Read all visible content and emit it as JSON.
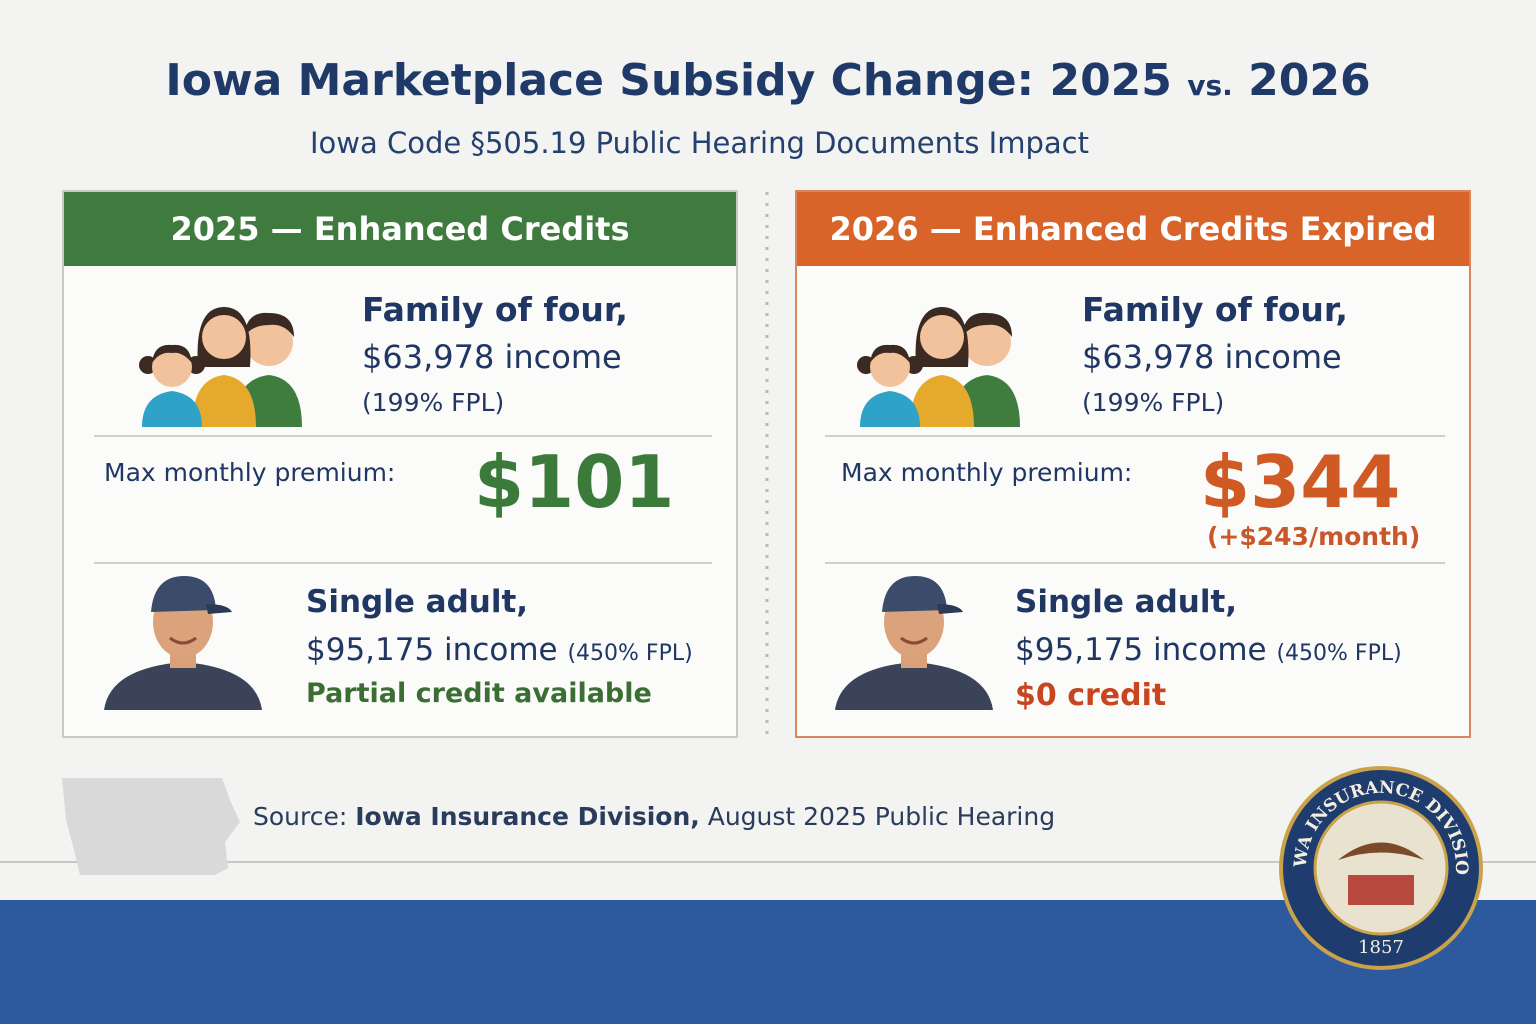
{
  "header": {
    "title": "Iowa Marketplace Subsidy Change: 2025",
    "title_vs": "vs.",
    "title_end": "2026",
    "subtitle": "Iowa Code §505.19 Public Hearing Documents Impact"
  },
  "panels": [
    {
      "heading": "2025 — Enhanced Credits",
      "family": {
        "line1": "Family of four,",
        "line2": "$63,978 income",
        "fpl": "(199% FPL)"
      },
      "premium_label": "Max monthly premium:",
      "premium": "$101",
      "single": {
        "line1": "Single adult,",
        "line2": "$95,175 income",
        "fpl": "(450% FPL)",
        "credit": "Partial credit available"
      }
    },
    {
      "heading": "2026 — Enhanced Credits Expired",
      "family": {
        "line1": "Family of four,",
        "line2": "$63,978 income",
        "fpl": "(199% FPL)"
      },
      "premium_label": "Max monthly premium:",
      "premium": "$344",
      "premium_change": "(+$243/month)",
      "single": {
        "line1": "Single adult,",
        "line2": "$95,175 income",
        "fpl": "(450% FPL)",
        "credit": "$0 credit"
      }
    }
  ],
  "source": {
    "label": "Source:",
    "agency": "Iowa Insurance Division,",
    "event": "August 2025 Public Hearing"
  },
  "seal": {
    "name": "IOWA INSURANCE DIVISION",
    "year": "1857"
  }
}
